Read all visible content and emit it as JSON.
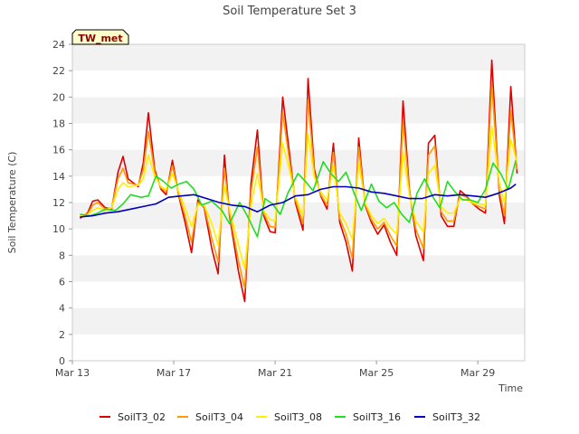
{
  "chart_data": {
    "type": "line",
    "title": "Soil Temperature Set 3",
    "xlabel": "Time",
    "ylabel": "Soil Temperature (C)",
    "station_label": "TW_met",
    "ylim": [
      0,
      24
    ],
    "yticks": [
      0,
      2,
      4,
      6,
      8,
      10,
      12,
      14,
      16,
      18,
      20,
      22,
      24
    ],
    "xlim": [
      0,
      17.85
    ],
    "xticks": [
      {
        "value": 0,
        "label": "Mar 13"
      },
      {
        "value": 4,
        "label": "Mar 17"
      },
      {
        "value": 8,
        "label": "Mar 21"
      },
      {
        "value": 12,
        "label": "Mar 25"
      },
      {
        "value": 16,
        "label": "Mar 29"
      }
    ],
    "grid": "horizontal-bands",
    "legend_position": "bottom",
    "series": [
      {
        "name": "SoilT3_02",
        "color": "#e00000",
        "x": [
          0.3,
          0.6,
          0.8,
          1.0,
          1.3,
          1.55,
          1.8,
          2.0,
          2.2,
          2.6,
          2.8,
          3.0,
          3.25,
          3.5,
          3.7,
          3.95,
          4.2,
          4.45,
          4.7,
          4.95,
          5.2,
          5.5,
          5.75,
          6.0,
          6.2,
          6.55,
          6.8,
          7.05,
          7.3,
          7.55,
          7.8,
          8.0,
          8.3,
          8.55,
          8.8,
          9.1,
          9.3,
          9.55,
          9.8,
          10.05,
          10.3,
          10.55,
          10.8,
          11.05,
          11.3,
          11.55,
          11.8,
          12.05,
          12.3,
          12.55,
          12.8,
          13.05,
          13.3,
          13.55,
          13.85,
          14.05,
          14.3,
          14.55,
          14.8,
          15.05,
          15.3,
          15.55,
          15.8,
          16.05,
          16.3,
          16.55,
          16.85,
          17.05,
          17.3,
          17.55
        ],
        "y": [
          10.8,
          11.2,
          12.1,
          12.2,
          11.6,
          11.5,
          14.3,
          15.5,
          13.8,
          13.2,
          15.0,
          18.8,
          14.5,
          13.0,
          12.6,
          15.2,
          12.5,
          10.5,
          8.2,
          12.2,
          11.6,
          8.5,
          6.6,
          15.6,
          11.0,
          6.8,
          4.5,
          13.5,
          17.5,
          11.0,
          9.8,
          9.7,
          20.0,
          16.0,
          12.0,
          9.9,
          21.4,
          14.5,
          12.5,
          11.5,
          16.5,
          10.5,
          9.0,
          6.8,
          16.9,
          11.8,
          10.5,
          9.6,
          10.3,
          9.0,
          8.0,
          19.7,
          13.0,
          9.5,
          7.6,
          16.5,
          17.1,
          11.0,
          10.2,
          10.2,
          12.9,
          12.5,
          11.9,
          11.5,
          11.2,
          22.8,
          12.5,
          10.4,
          20.8,
          14.2
        ]
      },
      {
        "name": "SoilT3_04",
        "color": "#ff9900",
        "x": [
          0.3,
          0.6,
          0.8,
          1.0,
          1.3,
          1.55,
          1.8,
          2.0,
          2.2,
          2.6,
          2.8,
          3.0,
          3.25,
          3.5,
          3.7,
          3.95,
          4.2,
          4.45,
          4.7,
          4.95,
          5.2,
          5.5,
          5.75,
          6.0,
          6.2,
          6.55,
          6.8,
          7.05,
          7.3,
          7.55,
          7.8,
          8.0,
          8.3,
          8.55,
          8.8,
          9.1,
          9.3,
          9.55,
          9.8,
          10.05,
          10.3,
          10.55,
          10.8,
          11.05,
          11.3,
          11.55,
          11.8,
          12.05,
          12.3,
          12.55,
          12.8,
          13.05,
          13.3,
          13.55,
          13.85,
          14.05,
          14.3,
          14.55,
          14.8,
          15.05,
          15.3,
          15.55,
          15.8,
          16.05,
          16.3,
          16.55,
          16.85,
          17.05,
          17.3,
          17.55
        ],
        "y": [
          10.9,
          11.1,
          11.8,
          12.0,
          11.5,
          11.6,
          13.8,
          14.6,
          13.5,
          13.3,
          14.5,
          17.4,
          14.3,
          13.1,
          12.8,
          14.8,
          12.6,
          11.0,
          9.0,
          12.0,
          11.7,
          9.3,
          7.5,
          14.6,
          11.2,
          7.6,
          5.5,
          12.8,
          16.2,
          11.2,
          10.2,
          10.1,
          18.8,
          15.4,
          12.2,
          10.4,
          19.8,
          14.2,
          12.6,
          11.8,
          15.8,
          10.8,
          9.6,
          7.8,
          16.2,
          11.9,
          10.7,
          10.0,
          10.5,
          9.5,
          8.7,
          18.2,
          12.8,
          10.0,
          8.5,
          15.6,
          16.3,
          11.3,
          10.6,
          10.6,
          12.6,
          12.4,
          11.9,
          11.7,
          11.5,
          21.0,
          12.9,
          11.0,
          19.0,
          14.5
        ]
      },
      {
        "name": "SoilT3_08",
        "color": "#ffee00",
        "x": [
          0.3,
          0.6,
          0.8,
          1.0,
          1.3,
          1.55,
          1.8,
          2.0,
          2.2,
          2.6,
          2.8,
          3.0,
          3.25,
          3.5,
          3.7,
          3.95,
          4.2,
          4.45,
          4.7,
          4.95,
          5.2,
          5.5,
          5.75,
          6.0,
          6.2,
          6.55,
          6.8,
          7.05,
          7.3,
          7.55,
          7.8,
          8.0,
          8.3,
          8.55,
          8.8,
          9.1,
          9.3,
          9.55,
          9.8,
          10.05,
          10.3,
          10.55,
          10.8,
          11.05,
          11.3,
          11.55,
          11.8,
          12.05,
          12.3,
          12.55,
          12.8,
          13.05,
          13.3,
          13.55,
          13.85,
          14.05,
          14.3,
          14.55,
          14.8,
          15.05,
          15.3,
          15.55,
          15.8,
          16.05,
          16.3,
          16.55,
          16.85,
          17.05,
          17.3,
          17.55
        ],
        "y": [
          11.0,
          11.1,
          11.4,
          11.6,
          11.4,
          11.6,
          13.0,
          13.5,
          13.2,
          13.3,
          13.8,
          15.6,
          14.0,
          13.2,
          13.0,
          14.2,
          12.8,
          11.6,
          10.2,
          11.8,
          11.8,
          10.4,
          8.8,
          13.2,
          11.5,
          8.8,
          7.0,
          11.8,
          14.2,
          11.4,
          10.7,
          10.6,
          16.5,
          14.6,
          12.4,
          11.0,
          17.2,
          13.9,
          12.8,
          12.2,
          14.8,
          11.2,
          10.4,
          9.2,
          15.0,
          12.0,
          11.0,
          10.4,
          10.8,
          10.1,
          9.6,
          15.8,
          12.6,
          10.6,
          9.8,
          14.2,
          14.8,
          11.7,
          11.2,
          11.2,
          12.3,
          12.2,
          12.0,
          11.9,
          11.8,
          17.8,
          13.5,
          12.0,
          16.8,
          15.0
        ]
      },
      {
        "name": "SoilT3_16",
        "color": "#22dd22",
        "x": [
          0.3,
          0.7,
          1.0,
          1.3,
          1.7,
          2.0,
          2.3,
          2.7,
          3.0,
          3.3,
          3.6,
          3.9,
          4.2,
          4.5,
          4.8,
          5.1,
          5.5,
          5.9,
          6.2,
          6.6,
          6.9,
          7.3,
          7.6,
          7.9,
          8.2,
          8.5,
          8.9,
          9.2,
          9.5,
          9.9,
          10.2,
          10.5,
          10.8,
          11.1,
          11.4,
          11.8,
          12.1,
          12.4,
          12.7,
          13.0,
          13.3,
          13.6,
          13.9,
          14.2,
          14.5,
          14.8,
          15.1,
          15.4,
          15.7,
          16.0,
          16.3,
          16.6,
          16.9,
          17.2,
          17.5
        ],
        "y": [
          11.1,
          11.0,
          11.2,
          11.5,
          11.4,
          11.9,
          12.6,
          12.4,
          12.5,
          14.0,
          13.6,
          13.1,
          13.4,
          13.6,
          13.0,
          11.8,
          12.1,
          11.4,
          10.4,
          12.0,
          11.0,
          9.4,
          12.3,
          11.9,
          11.1,
          12.7,
          14.2,
          13.6,
          12.9,
          15.1,
          14.2,
          13.6,
          14.3,
          12.8,
          11.4,
          13.4,
          12.1,
          11.6,
          12.0,
          11.1,
          10.5,
          12.7,
          13.8,
          12.5,
          11.6,
          13.6,
          12.8,
          12.2,
          12.2,
          12.0,
          13.0,
          15.0,
          14.2,
          13.0,
          15.2
        ]
      },
      {
        "name": "SoilT3_32",
        "color": "#0000bb",
        "x": [
          0.3,
          0.8,
          1.3,
          1.8,
          2.3,
          2.8,
          3.3,
          3.8,
          4.3,
          4.8,
          5.3,
          5.8,
          6.3,
          6.8,
          7.3,
          7.8,
          8.3,
          8.8,
          9.3,
          9.8,
          10.3,
          10.8,
          11.3,
          11.8,
          12.3,
          12.8,
          13.3,
          13.8,
          14.3,
          14.8,
          15.3,
          15.8,
          16.3,
          16.8,
          17.3,
          17.5
        ],
        "y": [
          10.9,
          11.0,
          11.2,
          11.3,
          11.5,
          11.7,
          11.9,
          12.4,
          12.5,
          12.6,
          12.3,
          12.0,
          11.8,
          11.7,
          11.3,
          11.8,
          12.0,
          12.5,
          12.6,
          13.0,
          13.2,
          13.2,
          13.1,
          12.8,
          12.7,
          12.5,
          12.3,
          12.3,
          12.6,
          12.5,
          12.6,
          12.5,
          12.4,
          12.7,
          13.1,
          13.4
        ]
      }
    ]
  }
}
